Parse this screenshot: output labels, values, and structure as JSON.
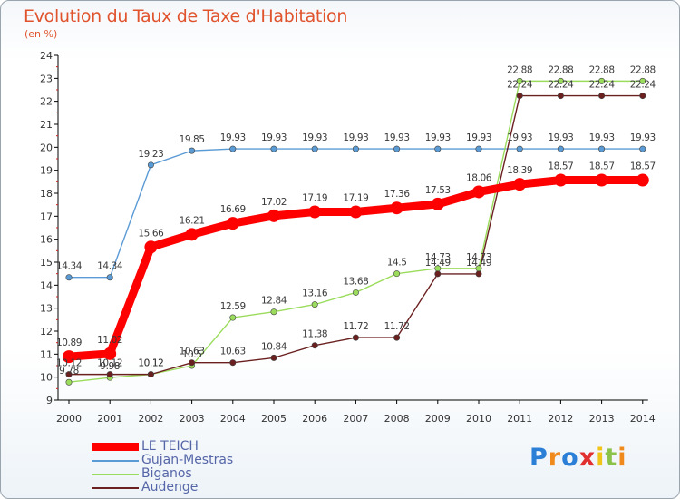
{
  "header": {
    "title": "Evolution du Taux de Taxe d'Habitation",
    "subtitle": "(en %)"
  },
  "chart_data": {
    "type": "line",
    "title": "Evolution du Taux de Taxe d'Habitation",
    "ylabel": "(en %)",
    "x": [
      "2000",
      "2001",
      "2002",
      "2003",
      "2004",
      "2005",
      "2006",
      "2007",
      "2008",
      "2009",
      "2010",
      "2011",
      "2012",
      "2013",
      "2014"
    ],
    "y_ticks": [
      "9",
      "10",
      "11",
      "12",
      "13",
      "14",
      "15",
      "16",
      "17",
      "18",
      "19",
      "20",
      "21",
      "22",
      "23",
      "24"
    ],
    "ylim": [
      9,
      24
    ],
    "grid": false,
    "legend_position": "bottom-left",
    "series": [
      {
        "name": "LE TEICH",
        "color": "#ff0000",
        "emphasis": true,
        "values": [
          10.89,
          11.02,
          15.66,
          16.21,
          16.69,
          17.02,
          17.19,
          17.19,
          17.36,
          17.53,
          18.06,
          18.39,
          18.57,
          18.57,
          18.57
        ],
        "labels": [
          "10.89",
          "11.02",
          "15.66",
          "16.21",
          "16.69",
          "17.02",
          "17.19",
          "17.19",
          "17.36",
          "17.53",
          "18.06",
          "18.39",
          "18.57",
          "18.57",
          "18.57"
        ]
      },
      {
        "name": "Gujan-Mestras",
        "color": "#5b9bd5",
        "values": [
          14.34,
          14.34,
          19.23,
          19.85,
          19.93,
          19.93,
          19.93,
          19.93,
          19.93,
          19.93,
          19.93,
          19.93,
          19.93,
          19.93,
          19.93
        ],
        "labels": [
          "14.34",
          "14.34",
          "19.23",
          "19.85",
          "19.93",
          "19.93",
          "19.93",
          "19.93",
          "19.93",
          "19.93",
          "19.93",
          "19.93",
          "19.93",
          "19.93",
          "19.93"
        ]
      },
      {
        "name": "Biganos",
        "color": "#9bdc5c",
        "values": [
          9.78,
          9.98,
          10.12,
          10.5,
          12.59,
          12.84,
          13.16,
          13.68,
          14.5,
          14.73,
          14.73,
          22.88,
          22.88,
          22.88,
          22.88
        ],
        "labels": [
          "9.78",
          "9.98",
          "10.12",
          "10.5",
          "12.59",
          "12.84",
          "13.16",
          "13.68",
          "14.5",
          "14.73",
          "14.73",
          "22.88",
          "22.88",
          "22.88",
          "22.88"
        ]
      },
      {
        "name": "Audenge",
        "color": "#6b2020",
        "values": [
          10.12,
          10.12,
          10.12,
          10.63,
          10.63,
          10.84,
          11.38,
          11.72,
          11.72,
          14.49,
          14.49,
          22.24,
          22.24,
          22.24,
          22.24
        ],
        "labels": [
          "10.12",
          "10.12",
          "10.12",
          "10.63",
          "10.63",
          "10.84",
          "11.38",
          "11.72",
          "11.72",
          "14.49",
          "14.49",
          "22.24",
          "22.24",
          "22.24",
          "22.24"
        ]
      }
    ]
  },
  "legend": {
    "items": [
      "LE TEICH",
      "Gujan-Mestras",
      "Biganos",
      "Audenge"
    ]
  },
  "logo": {
    "text": "Proxiti",
    "letters": [
      "P",
      "r",
      "o",
      "x",
      "i",
      "t",
      "i"
    ],
    "colors": [
      "#2b7fd6",
      "#f08a1c",
      "#2b7fd6",
      "#e03030",
      "#f0c419",
      "#8bc34a",
      "#f08a1c"
    ]
  }
}
